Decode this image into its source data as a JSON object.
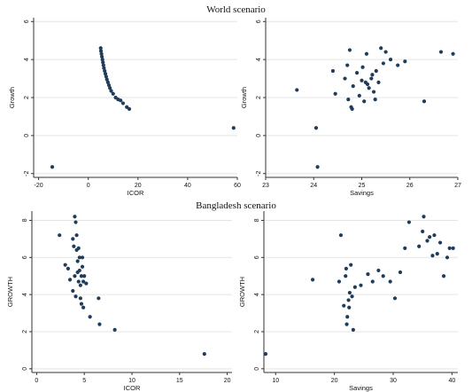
{
  "sections": {
    "world_title": "World scenario",
    "bangladesh_title": "Bangladesh scenario"
  },
  "chart_data": [
    {
      "type": "scatter",
      "xlabel": "ICOR",
      "ylabel": "Growth",
      "xlim": [
        -22,
        60
      ],
      "ylim": [
        -2.2,
        6.2
      ],
      "xticks": [
        -20,
        0,
        20,
        40,
        60
      ],
      "yticks": [
        -2,
        0,
        2,
        4,
        6
      ],
      "grid": "horizontal",
      "marker_color": "#1f3c5a",
      "points": [
        [
          -14.5,
          -1.65
        ],
        [
          5.0,
          4.6
        ],
        [
          5.1,
          4.45
        ],
        [
          5.3,
          4.3
        ],
        [
          5.5,
          4.15
        ],
        [
          5.7,
          4.0
        ],
        [
          5.9,
          3.85
        ],
        [
          6.1,
          3.7
        ],
        [
          6.3,
          3.55
        ],
        [
          6.6,
          3.4
        ],
        [
          6.9,
          3.25
        ],
        [
          7.2,
          3.1
        ],
        [
          7.5,
          2.95
        ],
        [
          7.9,
          2.8
        ],
        [
          8.3,
          2.65
        ],
        [
          8.7,
          2.5
        ],
        [
          9.2,
          2.35
        ],
        [
          10.0,
          2.2
        ],
        [
          11.0,
          2.0
        ],
        [
          12.0,
          1.9
        ],
        [
          13.0,
          1.85
        ],
        [
          14.0,
          1.7
        ],
        [
          15.5,
          1.5
        ],
        [
          16.5,
          1.4
        ],
        [
          58.5,
          0.4
        ]
      ]
    },
    {
      "type": "scatter",
      "xlabel": "Savings",
      "ylabel": "Growth",
      "xlim": [
        23,
        27
      ],
      "ylim": [
        -2.2,
        6.2
      ],
      "xticks": [
        23,
        24,
        25,
        26,
        27
      ],
      "yticks": [
        -2,
        0,
        2,
        4,
        6
      ],
      "grid": "horizontal",
      "marker_color": "#1f3c5a",
      "points": [
        [
          23.65,
          2.4
        ],
        [
          24.05,
          0.4
        ],
        [
          24.08,
          -1.65
        ],
        [
          24.4,
          3.4
        ],
        [
          24.45,
          2.2
        ],
        [
          24.65,
          3.0
        ],
        [
          24.7,
          3.7
        ],
        [
          24.72,
          1.9
        ],
        [
          24.75,
          4.5
        ],
        [
          24.78,
          1.5
        ],
        [
          24.8,
          1.4
        ],
        [
          24.82,
          2.6
        ],
        [
          24.9,
          3.3
        ],
        [
          24.95,
          2.1
        ],
        [
          25.0,
          2.9
        ],
        [
          25.02,
          3.6
        ],
        [
          25.05,
          1.8
        ],
        [
          25.08,
          2.8
        ],
        [
          25.1,
          4.3
        ],
        [
          25.12,
          2.7
        ],
        [
          25.15,
          2.5
        ],
        [
          25.2,
          3.0
        ],
        [
          25.22,
          3.2
        ],
        [
          25.25,
          2.3
        ],
        [
          25.28,
          1.9
        ],
        [
          25.3,
          3.4
        ],
        [
          25.35,
          2.8
        ],
        [
          25.4,
          4.6
        ],
        [
          25.45,
          3.8
        ],
        [
          25.5,
          4.4
        ],
        [
          25.6,
          4.0
        ],
        [
          25.75,
          3.7
        ],
        [
          25.9,
          3.9
        ],
        [
          26.3,
          1.8
        ],
        [
          26.65,
          4.4
        ],
        [
          26.9,
          4.3
        ]
      ]
    },
    {
      "type": "scatter",
      "xlabel": "ICOR",
      "ylabel": "GROWTH",
      "xlim": [
        -0.5,
        20.5
      ],
      "ylim": [
        -0.2,
        8.5
      ],
      "xticks": [
        0,
        5,
        10,
        15,
        20
      ],
      "yticks": [
        0,
        2,
        4,
        6,
        8
      ],
      "grid": "horizontal",
      "marker_color": "#1f3c5a",
      "points": [
        [
          2.4,
          7.2
        ],
        [
          3.0,
          5.6
        ],
        [
          3.3,
          5.4
        ],
        [
          3.5,
          4.8
        ],
        [
          3.8,
          7.0
        ],
        [
          3.8,
          4.2
        ],
        [
          3.9,
          6.6
        ],
        [
          4.0,
          8.2
        ],
        [
          4.0,
          5.0
        ],
        [
          4.1,
          7.9
        ],
        [
          4.1,
          3.9
        ],
        [
          4.2,
          7.2
        ],
        [
          4.2,
          6.4
        ],
        [
          4.3,
          5.8
        ],
        [
          4.3,
          5.2
        ],
        [
          4.4,
          6.5
        ],
        [
          4.4,
          4.7
        ],
        [
          4.5,
          6.0
        ],
        [
          4.5,
          5.3
        ],
        [
          4.6,
          4.5
        ],
        [
          4.6,
          3.8
        ],
        [
          4.7,
          5.0
        ],
        [
          4.7,
          3.5
        ],
        [
          4.8,
          6.0
        ],
        [
          4.8,
          5.5
        ],
        [
          4.9,
          4.7
        ],
        [
          4.9,
          3.3
        ],
        [
          5.0,
          5.0
        ],
        [
          5.2,
          4.6
        ],
        [
          5.6,
          2.8
        ],
        [
          6.5,
          3.8
        ],
        [
          6.6,
          2.4
        ],
        [
          8.2,
          2.1
        ],
        [
          17.6,
          0.8
        ]
      ]
    },
    {
      "type": "scatter",
      "xlabel": "Savings",
      "ylabel": "GROWTH",
      "xlim": [
        8,
        41
      ],
      "ylim": [
        -0.2,
        8.5
      ],
      "xticks": [
        10,
        20,
        30,
        40
      ],
      "yticks": [
        0,
        2,
        4,
        6,
        8
      ],
      "grid": "horizontal",
      "marker_color": "#1f3c5a",
      "points": [
        [
          8.3,
          0.8
        ],
        [
          16.3,
          4.8
        ],
        [
          20.8,
          4.7
        ],
        [
          21.1,
          7.2
        ],
        [
          21.6,
          3.4
        ],
        [
          21.9,
          5.0
        ],
        [
          22.0,
          5.4
        ],
        [
          22.1,
          2.4
        ],
        [
          22.2,
          2.8
        ],
        [
          22.4,
          3.7
        ],
        [
          22.5,
          3.3
        ],
        [
          22.6,
          4.1
        ],
        [
          22.8,
          5.6
        ],
        [
          23.0,
          3.9
        ],
        [
          23.2,
          2.1
        ],
        [
          23.5,
          4.4
        ],
        [
          24.5,
          4.5
        ],
        [
          25.7,
          5.1
        ],
        [
          26.5,
          4.7
        ],
        [
          27.5,
          5.3
        ],
        [
          28.3,
          5.0
        ],
        [
          29.5,
          4.7
        ],
        [
          30.3,
          3.8
        ],
        [
          31.2,
          5.2
        ],
        [
          32.0,
          6.5
        ],
        [
          32.7,
          7.9
        ],
        [
          34.4,
          6.6
        ],
        [
          35.0,
          7.4
        ],
        [
          35.2,
          8.2
        ],
        [
          35.8,
          6.9
        ],
        [
          36.2,
          7.1
        ],
        [
          36.7,
          6.1
        ],
        [
          37.0,
          7.2
        ],
        [
          37.5,
          6.2
        ],
        [
          38.0,
          6.8
        ],
        [
          38.6,
          5.0
        ],
        [
          39.2,
          6.0
        ],
        [
          39.6,
          6.5
        ],
        [
          40.2,
          6.5
        ]
      ]
    }
  ]
}
